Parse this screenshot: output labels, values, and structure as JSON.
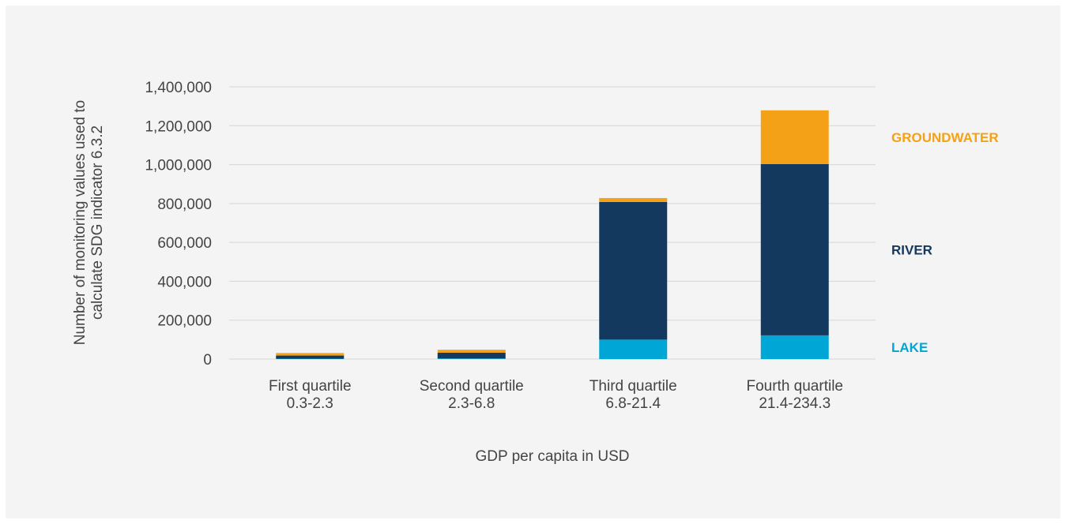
{
  "chart_data": {
    "type": "bar",
    "stacked": true,
    "categories": [
      [
        "First quartile",
        "0.3-2.3"
      ],
      [
        "Second quartile",
        "2.3-6.8"
      ],
      [
        "Third quartile",
        "6.8-21.4"
      ],
      [
        "Fourth quartile",
        "21.4-234.3"
      ]
    ],
    "series": [
      {
        "name": "LAKE",
        "color": "#00a6d6",
        "values": [
          2000,
          3000,
          100000,
          122000
        ]
      },
      {
        "name": "RIVER",
        "color": "#133a5e",
        "values": [
          16000,
          30000,
          708000,
          881000
        ]
      },
      {
        "name": "GROUNDWATER",
        "color": "#f5a117",
        "values": [
          13000,
          15000,
          20000,
          276000
        ]
      }
    ],
    "xlabel": "GDP per capita in USD",
    "ylabel": [
      "Number of monitoring values used to",
      "calculate SDG indicator 6.3.2"
    ],
    "ylim": [
      0,
      1400000
    ],
    "yticks": [
      0,
      200000,
      400000,
      600000,
      800000,
      1000000,
      1200000,
      1400000
    ],
    "ytick_labels": [
      "0",
      "200,000",
      "400,000",
      "600,000",
      "800,000",
      "1,000,000",
      "1,200,000",
      "1,400,000"
    ],
    "grid": true,
    "gridline_color": "#d6d6d6",
    "legend_placement": "right"
  }
}
